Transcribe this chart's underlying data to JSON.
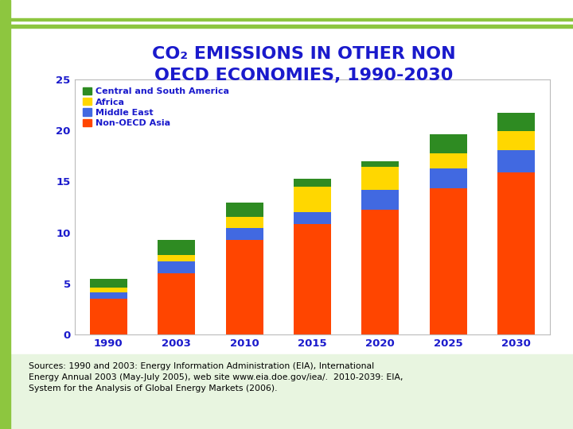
{
  "title_line1": "CO₂ EMISSIONS IN OTHER NON",
  "title_line2": "OECD ECONOMIES, 1990-2030",
  "title_color": "#1A1ACC",
  "categories": [
    "1990",
    "2003",
    "2010",
    "2015",
    "2020",
    "2025",
    "2030"
  ],
  "non_oecd_asia": [
    3.5,
    6.0,
    9.3,
    10.8,
    12.2,
    14.3,
    15.9
  ],
  "middle_east": [
    0.65,
    1.15,
    1.15,
    1.2,
    2.0,
    2.0,
    2.2
  ],
  "africa": [
    0.45,
    0.65,
    1.05,
    2.5,
    2.2,
    1.45,
    1.85
  ],
  "central_south_amer": [
    0.85,
    1.45,
    1.45,
    0.75,
    0.55,
    1.9,
    1.75
  ],
  "colors": {
    "non_oecd_asia": "#FF4500",
    "middle_east": "#4169E1",
    "africa": "#FFD700",
    "central_south_amer": "#2E8B22"
  },
  "ylim": [
    0,
    25
  ],
  "yticks": [
    0,
    5,
    10,
    15,
    20,
    25
  ],
  "tick_label_color": "#1A1ACC",
  "bar_width": 0.55,
  "bg_color": "#FFFFFF",
  "left_accent_color": "#8DC63F",
  "source_bg_color": "#E8F5E0"
}
